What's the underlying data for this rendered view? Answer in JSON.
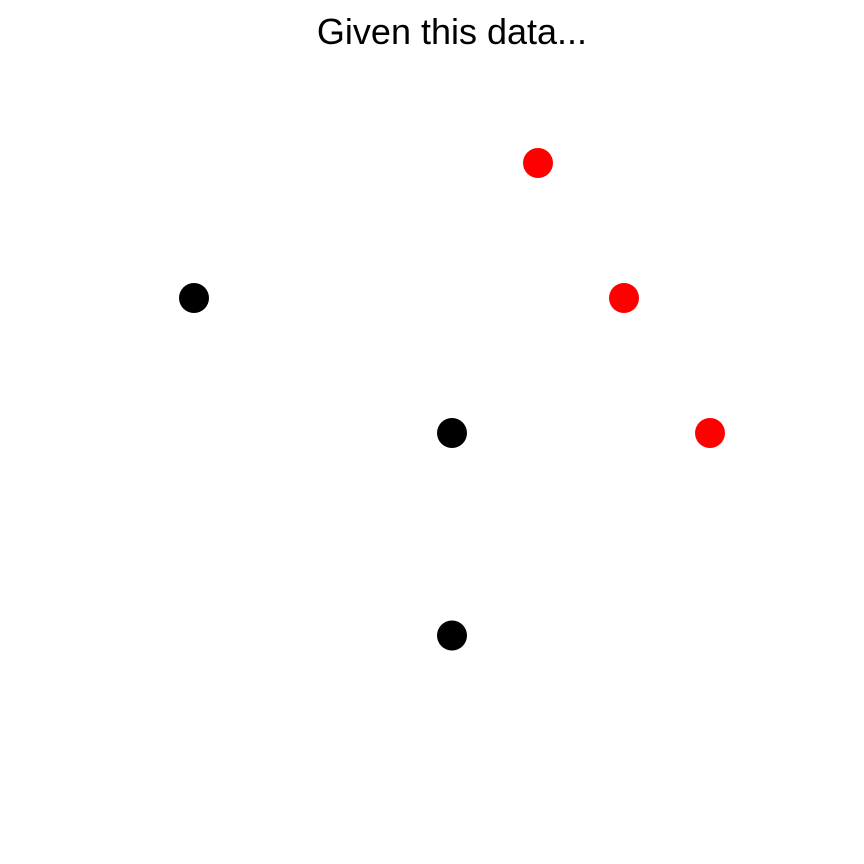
{
  "chart_data": {
    "type": "scatter",
    "title": "Given this data...",
    "xlabel": "",
    "ylabel": "",
    "axes_visible": false,
    "grid": false,
    "legend": "none",
    "xlim": [
      0,
      5
    ],
    "ylim": [
      0,
      5
    ],
    "series": [
      {
        "color": "#000000",
        "points": [
          {
            "x": 1.0,
            "y": 4.0
          },
          {
            "x": 2.5,
            "y": 3.0
          },
          {
            "x": 2.5,
            "y": 1.5
          }
        ]
      },
      {
        "color": "#ff0000",
        "points": [
          {
            "x": 3.0,
            "y": 5.0
          },
          {
            "x": 3.5,
            "y": 4.0
          },
          {
            "x": 4.0,
            "y": 3.0
          }
        ]
      }
    ]
  }
}
